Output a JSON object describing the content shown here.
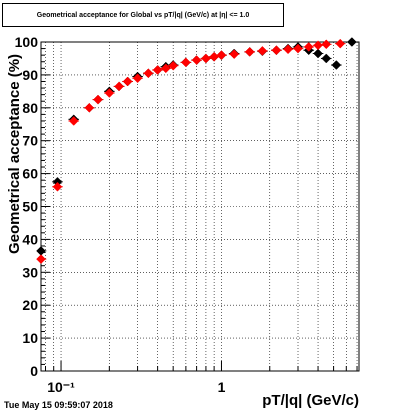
{
  "title": "Geometrical acceptance for Global vs pT/|q| (GeV/c) at |η| <= 1.0",
  "timestamp": "Tue May 15 09:59:07 2018",
  "chart_data": {
    "type": "scatter",
    "xlabel": "pT/|q| (GeV/c)",
    "ylabel": "Geometrical acceptance (%)",
    "x_scale": "log",
    "xlim": [
      0.075,
      7.2
    ],
    "ylim": [
      0,
      100
    ],
    "xticks_major": [
      {
        "value": 0.1,
        "label": "10⁻¹"
      },
      {
        "value": 1,
        "label": "1"
      }
    ],
    "yticks": [
      0,
      10,
      20,
      30,
      40,
      50,
      60,
      70,
      80,
      90,
      100
    ],
    "grid": true,
    "series": [
      {
        "color": "#000000",
        "points": [
          {
            "x": 0.075,
            "y": 36.5
          },
          {
            "x": 0.095,
            "y": 57.5
          },
          {
            "x": 0.12,
            "y": 76.5
          },
          {
            "x": 0.15,
            "y": 80.0
          },
          {
            "x": 0.17,
            "y": 82.5
          },
          {
            "x": 0.2,
            "y": 85.0
          },
          {
            "x": 0.23,
            "y": 86.5
          },
          {
            "x": 0.26,
            "y": 88.0
          },
          {
            "x": 0.3,
            "y": 89.5
          },
          {
            "x": 0.35,
            "y": 90.5
          },
          {
            "x": 0.4,
            "y": 91.5
          },
          {
            "x": 0.45,
            "y": 92.5
          },
          {
            "x": 0.5,
            "y": 93.0
          },
          {
            "x": 0.6,
            "y": 93.8
          },
          {
            "x": 0.7,
            "y": 94.5
          },
          {
            "x": 0.8,
            "y": 95.0
          },
          {
            "x": 0.9,
            "y": 95.5
          },
          {
            "x": 1.0,
            "y": 96.0
          },
          {
            "x": 1.2,
            "y": 96.5
          },
          {
            "x": 1.5,
            "y": 97.0
          },
          {
            "x": 1.8,
            "y": 97.2
          },
          {
            "x": 2.2,
            "y": 97.5
          },
          {
            "x": 2.6,
            "y": 98.0
          },
          {
            "x": 3.0,
            "y": 98.5
          },
          {
            "x": 3.5,
            "y": 97.5
          },
          {
            "x": 4.0,
            "y": 96.5
          },
          {
            "x": 4.5,
            "y": 95.0
          },
          {
            "x": 5.2,
            "y": 93.0
          },
          {
            "x": 6.5,
            "y": 100.0
          }
        ]
      },
      {
        "color": "#ff0000",
        "points": [
          {
            "x": 0.075,
            "y": 34.0
          },
          {
            "x": 0.095,
            "y": 56.0
          },
          {
            "x": 0.12,
            "y": 76.0
          },
          {
            "x": 0.15,
            "y": 80.0
          },
          {
            "x": 0.17,
            "y": 82.5
          },
          {
            "x": 0.2,
            "y": 84.5
          },
          {
            "x": 0.23,
            "y": 86.5
          },
          {
            "x": 0.26,
            "y": 88.0
          },
          {
            "x": 0.3,
            "y": 89.0
          },
          {
            "x": 0.35,
            "y": 90.5
          },
          {
            "x": 0.4,
            "y": 91.5
          },
          {
            "x": 0.45,
            "y": 92.0
          },
          {
            "x": 0.5,
            "y": 92.8
          },
          {
            "x": 0.6,
            "y": 93.8
          },
          {
            "x": 0.7,
            "y": 94.5
          },
          {
            "x": 0.8,
            "y": 95.0
          },
          {
            "x": 0.9,
            "y": 95.5
          },
          {
            "x": 1.0,
            "y": 96.0
          },
          {
            "x": 1.2,
            "y": 96.3
          },
          {
            "x": 1.5,
            "y": 97.0
          },
          {
            "x": 1.8,
            "y": 97.3
          },
          {
            "x": 2.2,
            "y": 97.5
          },
          {
            "x": 2.6,
            "y": 97.8
          },
          {
            "x": 3.0,
            "y": 98.0
          },
          {
            "x": 3.5,
            "y": 98.5
          },
          {
            "x": 4.0,
            "y": 99.0
          },
          {
            "x": 4.5,
            "y": 99.3
          },
          {
            "x": 5.5,
            "y": 99.5
          }
        ]
      }
    ]
  }
}
